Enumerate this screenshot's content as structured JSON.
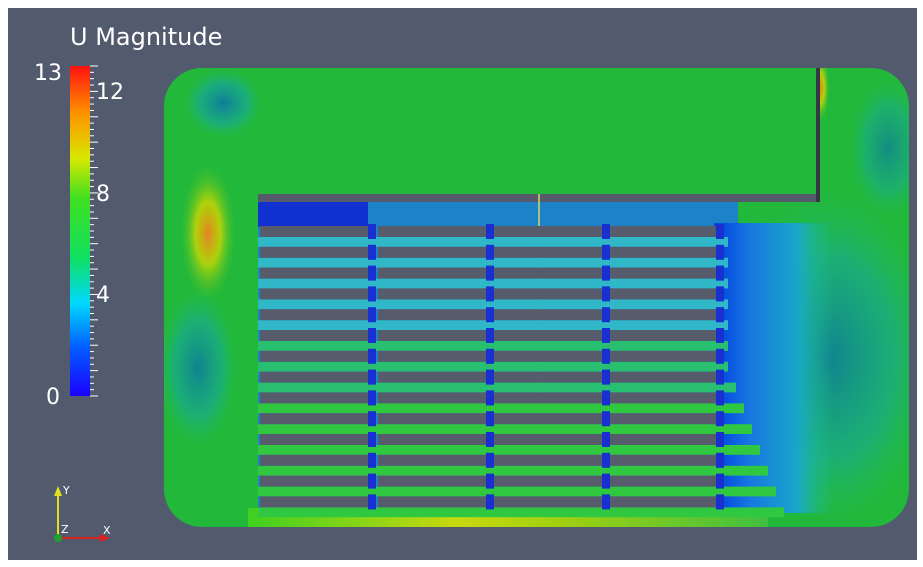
{
  "view": {
    "background": "#525a6e",
    "domain_background": "#22b83a"
  },
  "colorbar": {
    "title": "U Magnitude",
    "range": [
      0,
      13
    ],
    "range_labels": [
      "0",
      "13"
    ],
    "ticks": [
      {
        "label": "4",
        "value": 4
      },
      {
        "label": "8",
        "value": 8
      },
      {
        "label": "12",
        "value": 12
      }
    ],
    "colors": [
      "#1a00ff",
      "#0090ff",
      "#00e8ff",
      "#20e040",
      "#60e020",
      "#e8e800",
      "#ff8000",
      "#ff1010"
    ]
  },
  "orientation_axes": {
    "y_label": "Y",
    "z_label": "Z",
    "x_label": "X",
    "colors": {
      "x": "#e02020",
      "y": "#e0e020",
      "z": "#208020"
    }
  }
}
